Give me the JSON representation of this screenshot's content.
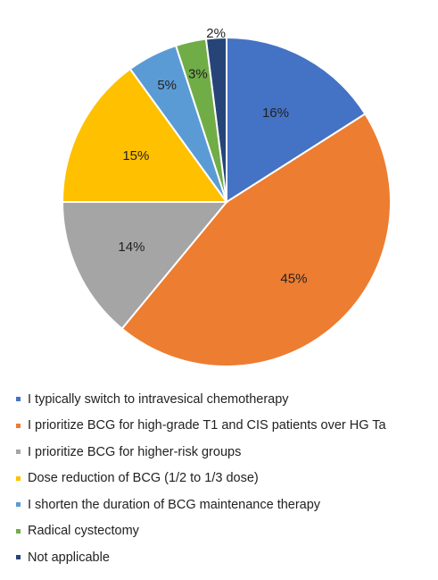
{
  "chart_data": {
    "type": "pie",
    "title": "",
    "categories": [
      "I typically switch to intravesical chemotherapy",
      "I prioritize BCG for high-grade T1 and CIS patients over HG Ta",
      "I prioritize BCG for higher-risk groups",
      "Dose reduction of BCG (1/2 to 1/3 dose)",
      "I shorten the duration of BCG maintenance therapy",
      "Radical cystectomy",
      "Not applicable"
    ],
    "values": [
      16,
      45,
      14,
      15,
      5,
      3,
      2
    ],
    "value_labels": [
      "16%",
      "45%",
      "14%",
      "15%",
      "5%",
      "3%",
      "2%"
    ],
    "colors": [
      "#4472c4",
      "#ed7d31",
      "#a5a5a5",
      "#ffc000",
      "#5b9bd5",
      "#70ad47",
      "#264478"
    ],
    "legend_position": "bottom"
  }
}
